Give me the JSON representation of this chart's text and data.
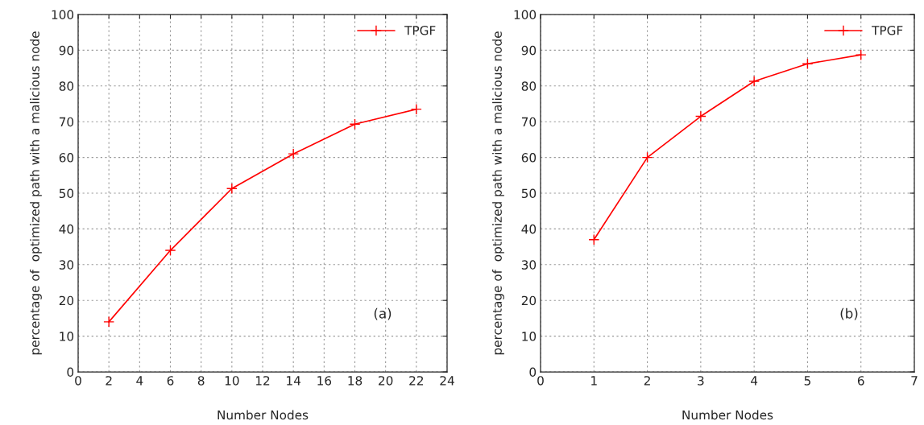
{
  "chart_data": [
    {
      "type": "line",
      "xlabel": "Number Nodes",
      "ylabel": "percentage of  optimized path with a malicious node",
      "x": [
        2,
        6,
        10,
        14,
        18,
        22
      ],
      "xlim": [
        0,
        24
      ],
      "xticks": [
        0,
        2,
        4,
        6,
        8,
        10,
        12,
        14,
        16,
        18,
        20,
        22,
        24
      ],
      "ylim": [
        0,
        100
      ],
      "yticks": [
        0,
        10,
        20,
        30,
        40,
        50,
        60,
        70,
        80,
        90,
        100
      ],
      "grid": true,
      "legend": "top right",
      "marker": "cross",
      "line_style": "solid",
      "annotations": [
        "(a)"
      ],
      "series": [
        {
          "name": "TPGF",
          "color": "#ff0000",
          "values": [
            14,
            34,
            51.3,
            61,
            69.3,
            73.5
          ]
        }
      ]
    },
    {
      "type": "line",
      "xlabel": "Number Nodes",
      "ylabel": "percentage of  optimized path with a malicious node",
      "x": [
        1,
        2,
        3,
        4,
        5,
        6
      ],
      "xlim": [
        0,
        7
      ],
      "xticks": [
        0,
        1,
        2,
        3,
        4,
        5,
        6,
        7
      ],
      "ylim": [
        0,
        100
      ],
      "yticks": [
        0,
        10,
        20,
        30,
        40,
        50,
        60,
        70,
        80,
        90,
        100
      ],
      "grid": true,
      "legend": "top right",
      "marker": "cross",
      "line_style": "solid",
      "annotations": [
        "(b)"
      ],
      "series": [
        {
          "name": "TPGF",
          "color": "#ff0000",
          "values": [
            37,
            60,
            71.5,
            81.3,
            86.2,
            88.7
          ]
        }
      ]
    }
  ]
}
